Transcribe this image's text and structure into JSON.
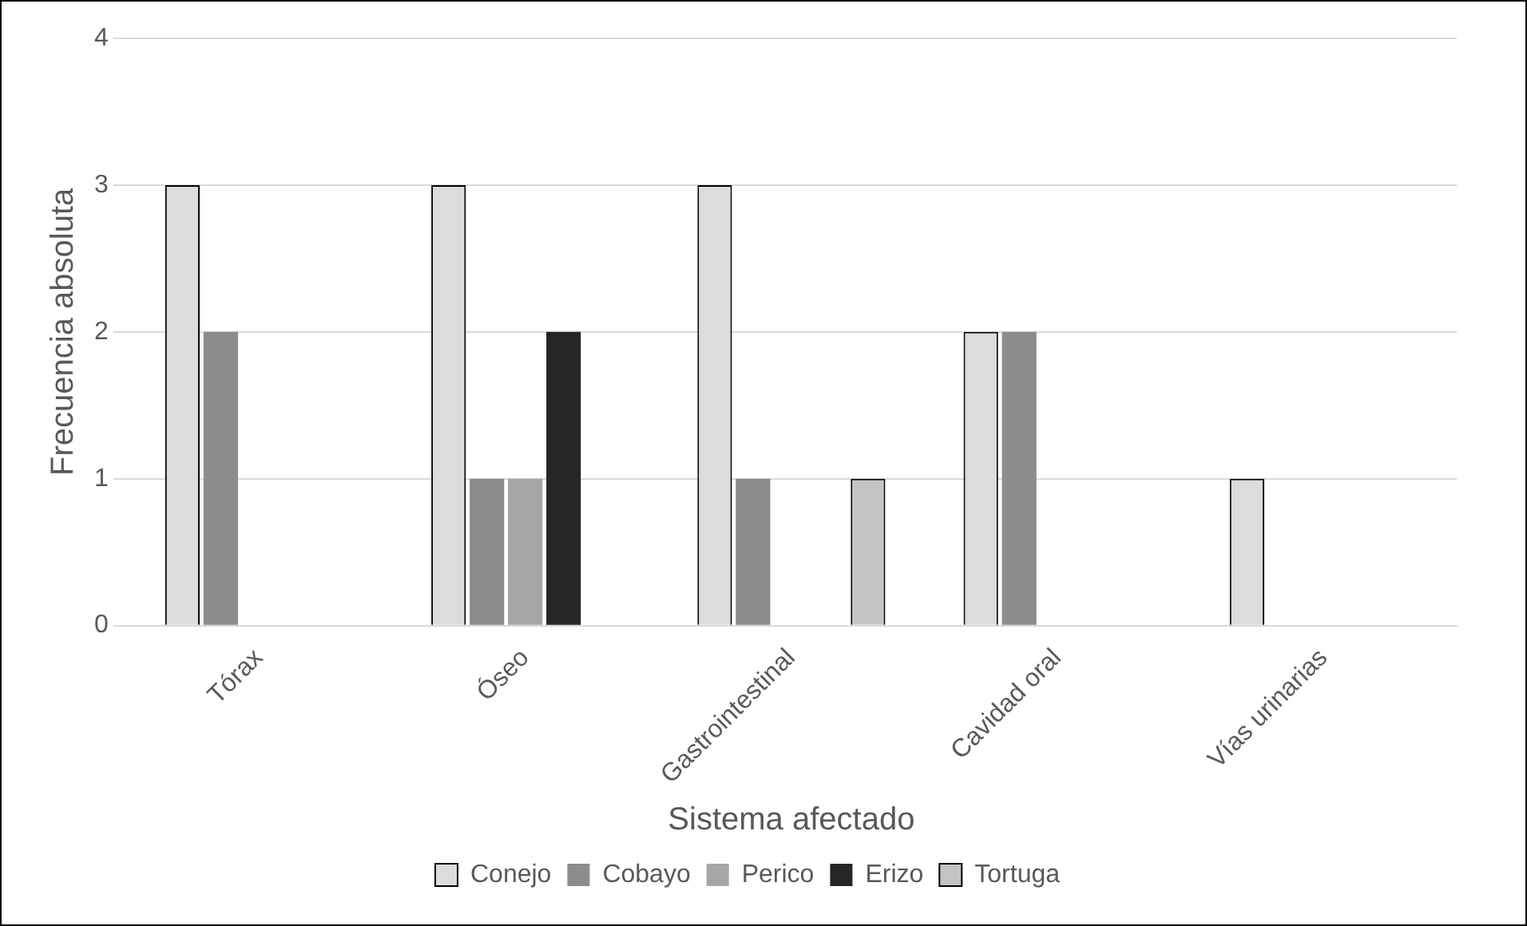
{
  "chart_data": {
    "type": "bar",
    "xlabel": "Sistema afectado",
    "ylabel": "Frecuencia absoluta",
    "categories": [
      "Tórax",
      "Óseo",
      "Gastrointestinal",
      "Cavidad oral",
      "Vías urinarias"
    ],
    "series": [
      {
        "name": "Conejo",
        "color": "#dcdcdc",
        "values": [
          3,
          3,
          3,
          2,
          1
        ]
      },
      {
        "name": "Cobayo",
        "color": "#8c8c8c",
        "values": [
          2,
          1,
          1,
          2,
          0
        ]
      },
      {
        "name": "Perico",
        "color": "#a6a6a6",
        "values": [
          0,
          1,
          0,
          0,
          0
        ]
      },
      {
        "name": "Erizo",
        "color": "#262626",
        "values": [
          0,
          2,
          0,
          0,
          0
        ]
      },
      {
        "name": "Tortuga",
        "color": "#c4c4c4",
        "values": [
          0,
          0,
          1,
          0,
          0
        ]
      }
    ],
    "ylim": [
      0,
      4
    ],
    "yticks": [
      0,
      1,
      2,
      3,
      4
    ],
    "grid": "y",
    "legend": "bottom"
  }
}
